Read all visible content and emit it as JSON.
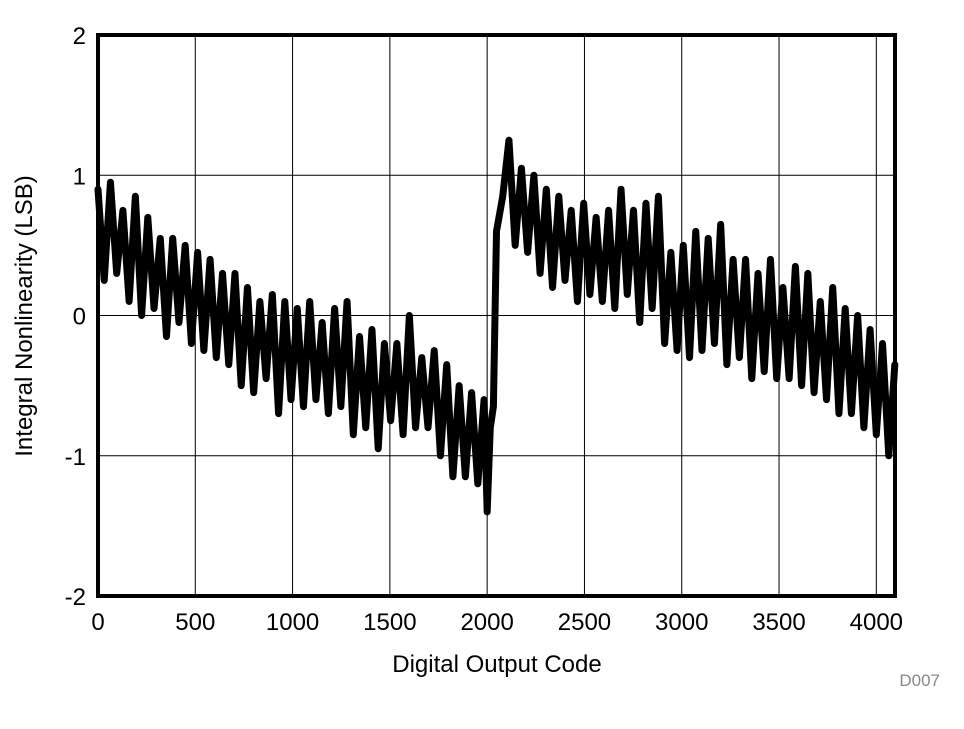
{
  "chart_data": {
    "type": "line",
    "x_label": "Digital Output Code",
    "y_label": "Integral Nonlinearity (LSB)",
    "annotation": "D007",
    "xlim": [
      0,
      4096
    ],
    "ylim": [
      -2,
      2
    ],
    "xticks": [
      0,
      500,
      1000,
      1500,
      2000,
      2500,
      3000,
      3500,
      4000
    ],
    "yticks": [
      -2,
      -1,
      0,
      1,
      2
    ],
    "grid": true,
    "series": [
      {
        "color": "#000000",
        "x": [
          0,
          32,
          64,
          96,
          128,
          160,
          192,
          224,
          256,
          288,
          320,
          352,
          384,
          416,
          448,
          480,
          512,
          544,
          576,
          608,
          640,
          672,
          704,
          736,
          768,
          800,
          832,
          864,
          896,
          928,
          960,
          992,
          1024,
          1056,
          1088,
          1120,
          1152,
          1184,
          1216,
          1248,
          1280,
          1312,
          1344,
          1376,
          1408,
          1440,
          1472,
          1504,
          1536,
          1568,
          1600,
          1632,
          1664,
          1696,
          1728,
          1760,
          1792,
          1824,
          1856,
          1888,
          1920,
          1952,
          1984,
          2000,
          2016,
          2032,
          2048,
          2080,
          2112,
          2144,
          2176,
          2208,
          2240,
          2272,
          2304,
          2336,
          2368,
          2400,
          2432,
          2464,
          2496,
          2528,
          2560,
          2592,
          2624,
          2656,
          2688,
          2720,
          2752,
          2784,
          2816,
          2848,
          2880,
          2912,
          2944,
          2976,
          3008,
          3040,
          3072,
          3104,
          3136,
          3168,
          3200,
          3232,
          3264,
          3296,
          3328,
          3360,
          3392,
          3424,
          3456,
          3488,
          3520,
          3552,
          3584,
          3616,
          3648,
          3680,
          3712,
          3744,
          3776,
          3808,
          3840,
          3872,
          3904,
          3936,
          3968,
          4000,
          4032,
          4064,
          4095
        ],
        "values": [
          0.9,
          0.25,
          0.95,
          0.3,
          0.75,
          0.1,
          0.85,
          0.0,
          0.7,
          0.05,
          0.55,
          -0.15,
          0.55,
          -0.05,
          0.5,
          -0.2,
          0.45,
          -0.25,
          0.4,
          -0.3,
          0.3,
          -0.35,
          0.3,
          -0.5,
          0.2,
          -0.55,
          0.1,
          -0.45,
          0.15,
          -0.7,
          0.1,
          -0.6,
          0.05,
          -0.65,
          0.1,
          -0.6,
          -0.05,
          -0.7,
          0.05,
          -0.65,
          0.1,
          -0.85,
          -0.15,
          -0.8,
          -0.1,
          -0.95,
          -0.2,
          -0.75,
          -0.2,
          -0.85,
          0.0,
          -0.8,
          -0.3,
          -0.8,
          -0.25,
          -1.0,
          -0.35,
          -1.15,
          -0.5,
          -1.15,
          -0.55,
          -1.2,
          -0.6,
          -1.4,
          -0.8,
          -0.65,
          0.6,
          0.85,
          1.25,
          0.5,
          1.05,
          0.45,
          1.0,
          0.3,
          0.9,
          0.2,
          0.85,
          0.25,
          0.75,
          0.1,
          0.8,
          0.15,
          0.7,
          0.1,
          0.75,
          0.05,
          0.9,
          0.15,
          0.75,
          -0.05,
          0.8,
          0.05,
          0.85,
          -0.2,
          0.45,
          -0.25,
          0.5,
          -0.3,
          0.6,
          -0.25,
          0.55,
          -0.2,
          0.65,
          -0.35,
          0.4,
          -0.3,
          0.4,
          -0.45,
          0.3,
          -0.4,
          0.4,
          -0.45,
          0.2,
          -0.45,
          0.35,
          -0.5,
          0.3,
          -0.55,
          0.1,
          -0.6,
          0.2,
          -0.7,
          0.05,
          -0.7,
          0.0,
          -0.8,
          -0.1,
          -0.85,
          -0.2,
          -1.0,
          -0.35
        ]
      }
    ]
  }
}
